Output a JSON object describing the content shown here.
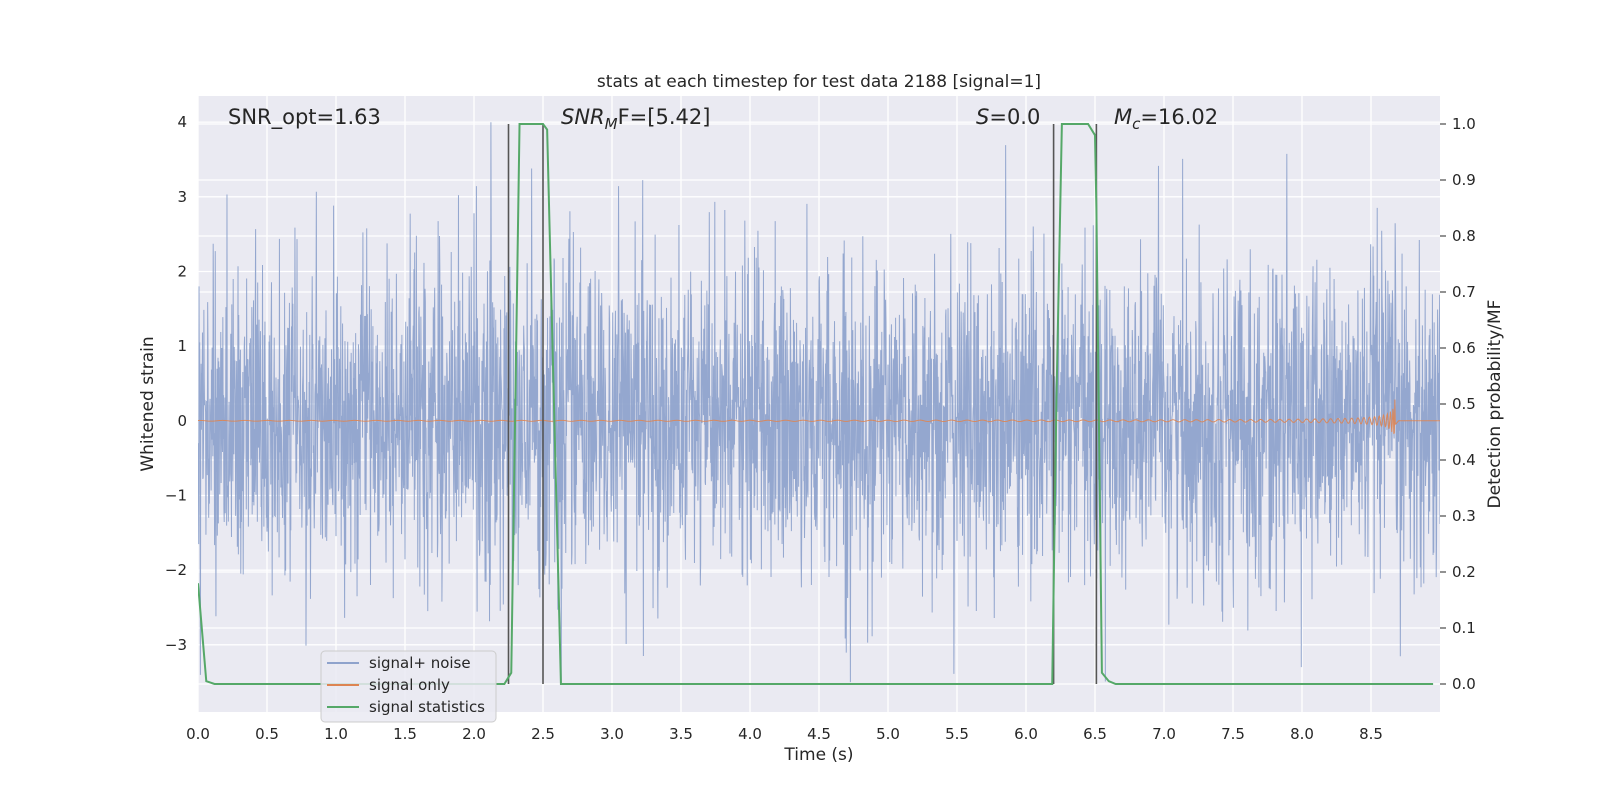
{
  "chart_data": {
    "type": "line",
    "title": "stats at each timestep for test data 2188 [signal=1]",
    "xlabel": "Time (s)",
    "ylabel": "Whitened strain",
    "ylabel_right": "Detection probability/MF",
    "xlim": [
      0.0,
      9.0
    ],
    "ylim": [
      -3.9,
      4.35
    ],
    "ylim_right": [
      -0.05,
      1.05
    ],
    "x_ticks": [
      "0.0",
      "0.5",
      "1.0",
      "1.5",
      "2.0",
      "2.5",
      "3.0",
      "3.5",
      "4.0",
      "4.5",
      "5.0",
      "5.5",
      "6.0",
      "6.5",
      "7.0",
      "7.5",
      "8.0",
      "8.5"
    ],
    "y_ticks": [
      "−3",
      "−2",
      "−1",
      "0",
      "1",
      "2",
      "3",
      "4"
    ],
    "y_ticks_right": [
      "0.0",
      "0.1",
      "0.2",
      "0.3",
      "0.4",
      "0.5",
      "0.6",
      "0.7",
      "0.8",
      "0.9",
      "1.0"
    ],
    "grid": true,
    "legend_position": "lower-left",
    "annotations": [
      {
        "text": "SNR_opt=1.63"
      },
      {
        "text": "SNR",
        "sub": "M",
        "tail": "F=[5.42]"
      },
      {
        "text": "S",
        "tail": "=0.0"
      },
      {
        "text": "M",
        "sub": "c",
        "tail": "=16.02"
      }
    ],
    "series": [
      {
        "name": "signal+ noise",
        "color": "#8fa3cc",
        "kind": "noise",
        "amplitude_range": [
          -3.5,
          4.0
        ],
        "x_range": [
          0.0,
          9.0
        ]
      },
      {
        "name": "signal only",
        "color": "#dd8452",
        "kind": "chirp",
        "merger_time": 8.68,
        "peak_amplitude": 0.3
      },
      {
        "name": "signal statistics",
        "color": "#55a868",
        "axis": "right",
        "x": [
          0.0,
          0.06,
          0.12,
          0.3,
          2.22,
          2.27,
          2.33,
          2.5,
          2.53,
          2.63,
          6.19,
          6.22,
          6.26,
          6.45,
          6.5,
          6.51,
          6.55,
          6.6,
          6.65,
          8.95
        ],
        "y": [
          0.18,
          0.005,
          0.0,
          0.0,
          0.0,
          0.02,
          1.0,
          1.0,
          0.99,
          0.0,
          0.0,
          0.5,
          1.0,
          1.0,
          0.98,
          0.85,
          0.02,
          0.005,
          0.0,
          0.0
        ]
      }
    ],
    "vertical_markers_x": [
      2.25,
      2.5,
      6.2,
      6.51
    ],
    "colors": {
      "plot_background": "#eaeaf2",
      "grid": "#ffffff",
      "marker_lines": "#555555"
    }
  }
}
